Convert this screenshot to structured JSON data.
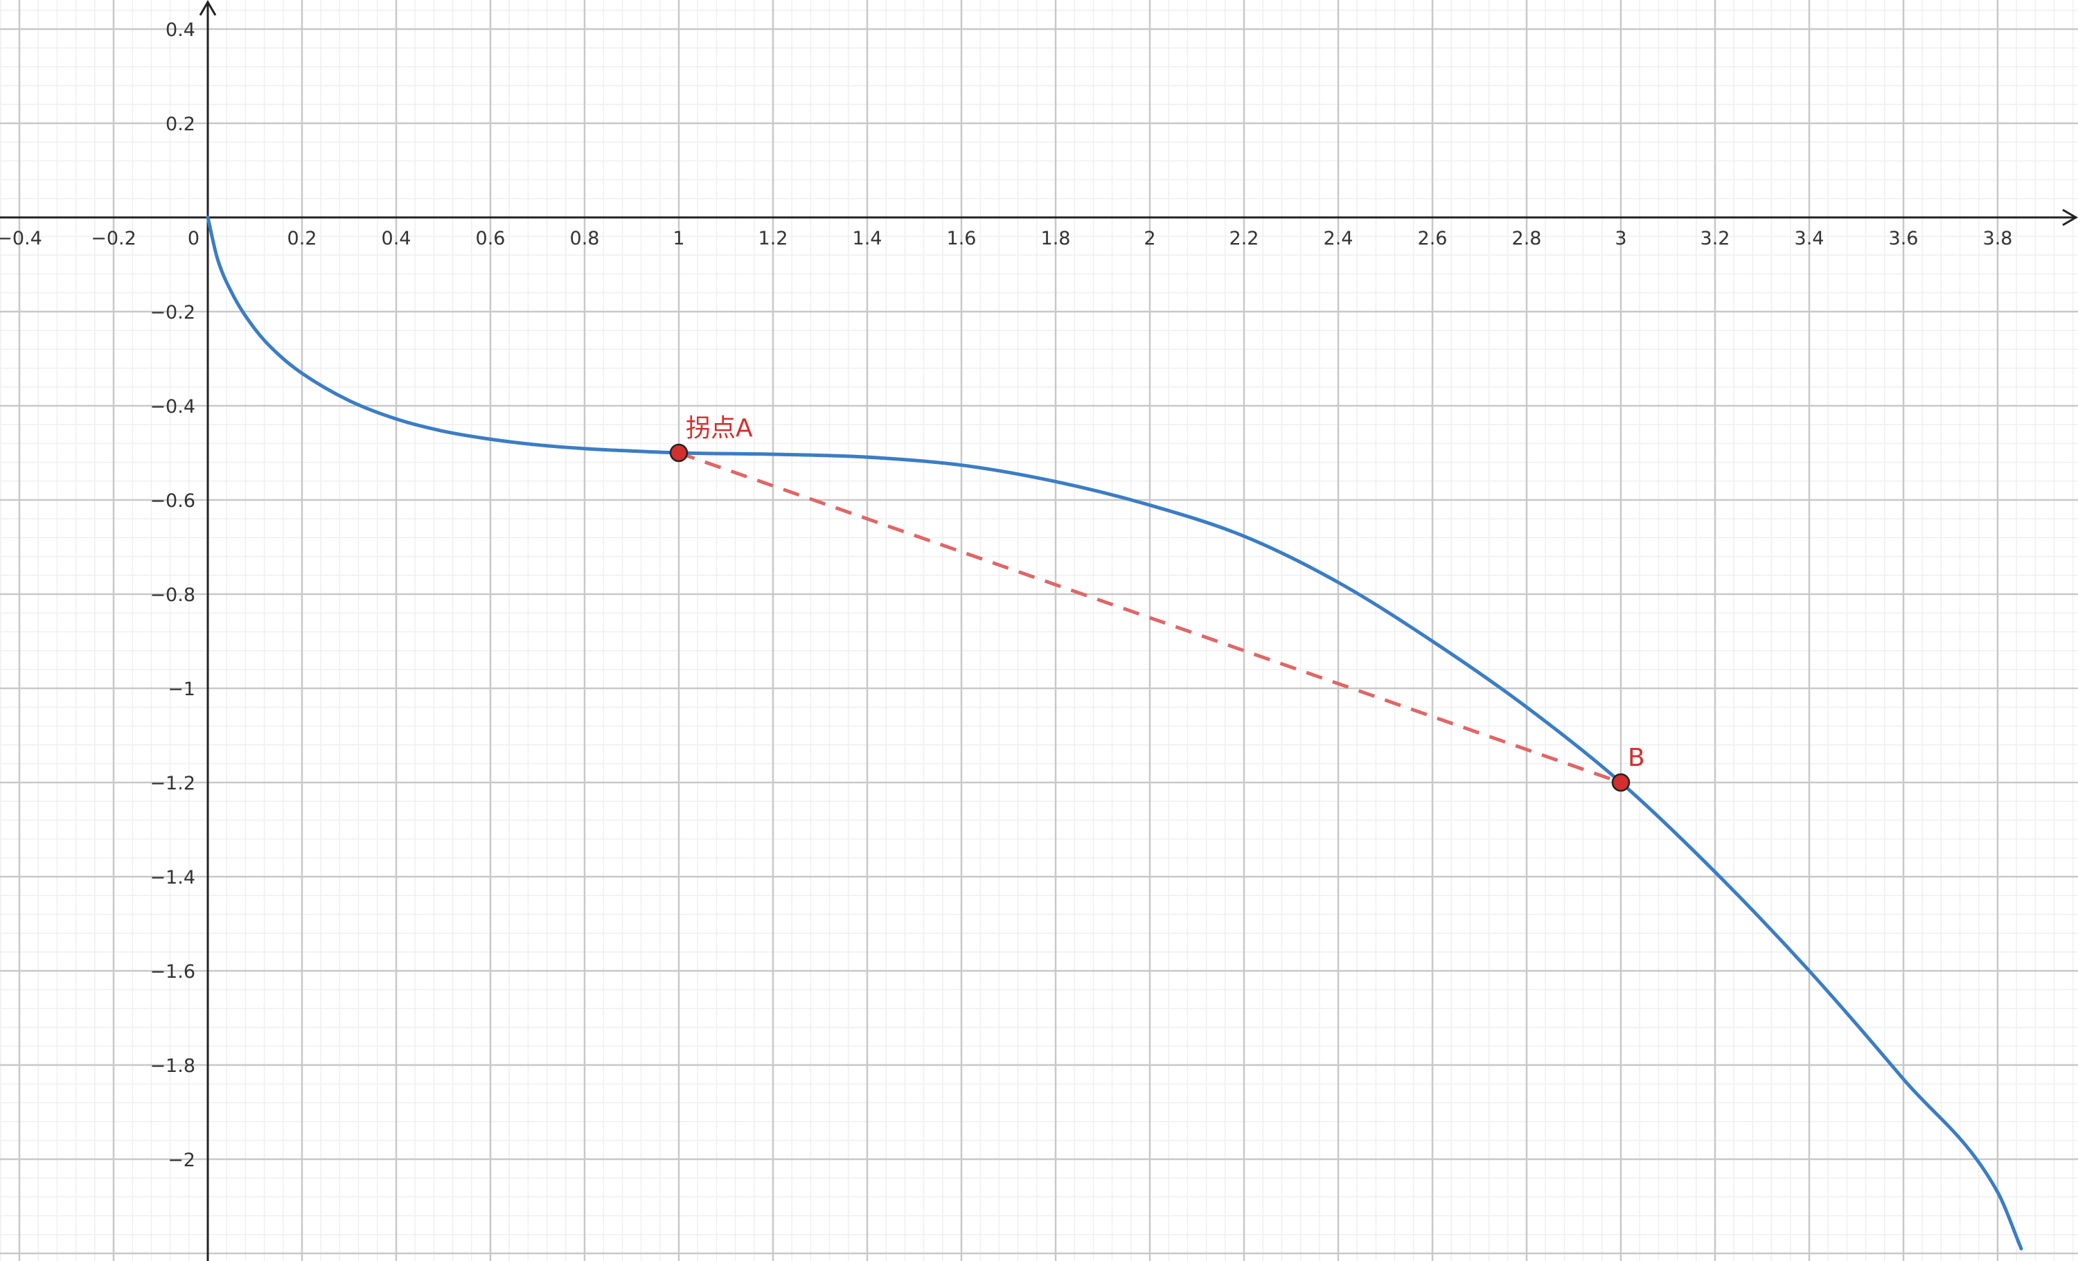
{
  "chart_data": {
    "type": "line",
    "title": "",
    "xlabel": "",
    "ylabel": "",
    "xlim": [
      -0.44,
      3.96
    ],
    "ylim": [
      -2.2,
      0.44
    ],
    "grid": true,
    "minor_grid": true,
    "x_ticks": [
      "−0.4",
      "−0.2",
      "0",
      "0.2",
      "0.4",
      "0.6",
      "0.8",
      "1",
      "1.2",
      "1.4",
      "1.6",
      "1.8",
      "2",
      "2.2",
      "2.4",
      "2.6",
      "2.8",
      "3",
      "3.2",
      "3.4",
      "3.6",
      "3.8"
    ],
    "y_ticks": [
      "0.4",
      "0.2",
      "−0.2",
      "−0.4",
      "−0.6",
      "−0.8",
      "−1",
      "−1.2",
      "−1.4",
      "−1.6",
      "−1.8",
      "−2"
    ],
    "series": [
      {
        "color": "#3b7dc4",
        "x": [
          0,
          0.02,
          0.05,
          0.1,
          0.15,
          0.2,
          0.3,
          0.4,
          0.5,
          0.6,
          0.7,
          0.8,
          0.9,
          1.0,
          1.2,
          1.4,
          1.6,
          1.8,
          2.0,
          2.2,
          2.4,
          2.6,
          2.8,
          3.0,
          3.2,
          3.4,
          3.6,
          3.8,
          3.85
        ],
        "y": [
          0,
          -0.086,
          -0.158,
          -0.237,
          -0.291,
          -0.331,
          -0.389,
          -0.428,
          -0.454,
          -0.471,
          -0.483,
          -0.491,
          -0.496,
          -0.5,
          -0.503,
          -0.509,
          -0.526,
          -0.561,
          -0.611,
          -0.677,
          -0.775,
          -0.9,
          -1.04,
          -1.2,
          -1.39,
          -1.6,
          -1.83,
          -2.07,
          -2.19
        ]
      }
    ],
    "dashed_segment": {
      "color": "#e06666",
      "from": [
        1,
        -0.5
      ],
      "to": [
        3,
        -1.2
      ]
    },
    "points": [
      {
        "label": "拐点A",
        "x": 1,
        "y": -0.5,
        "color": "#d32f2f"
      },
      {
        "label": "B",
        "x": 3,
        "y": -1.2,
        "color": "#d32f2f"
      }
    ]
  }
}
